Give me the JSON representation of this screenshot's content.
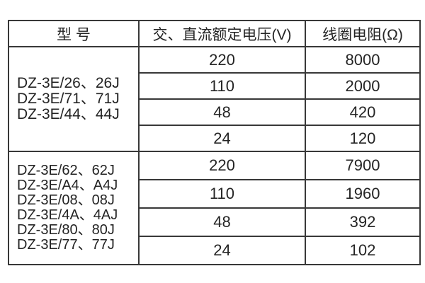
{
  "table": {
    "headers": [
      "型 号",
      "交、直流额定电压(V)",
      "线圈电阻(Ω)"
    ],
    "sections": [
      {
        "model_groups": [
          [
            "DZ-3E/26、26J"
          ],
          [
            "DZ-3E/71、71J"
          ],
          [
            "DZ-3E/44、44J"
          ]
        ],
        "rows": [
          {
            "voltage": "220",
            "resistance": "8000"
          },
          {
            "voltage": "110",
            "resistance": "2000"
          },
          {
            "voltage": "48",
            "resistance": "420"
          },
          {
            "voltage": "24",
            "resistance": "120"
          }
        ]
      },
      {
        "model_groups": [
          [
            "DZ-3E/62、62J"
          ],
          [
            "DZ-3E/A4、A4J",
            "DZ-3E/08、08J"
          ],
          [
            "DZ-3E/4A、4AJ",
            "DZ-3E/80、80J"
          ],
          [
            "DZ-3E/77、77J"
          ]
        ],
        "rows": [
          {
            "voltage": "220",
            "resistance": "7900"
          },
          {
            "voltage": "110",
            "resistance": "1960"
          },
          {
            "voltage": "48",
            "resistance": "392"
          },
          {
            "voltage": "24",
            "resistance": "102"
          }
        ]
      }
    ]
  },
  "colors": {
    "background": "#ffffff",
    "border": "#383838",
    "text": "#242424"
  }
}
